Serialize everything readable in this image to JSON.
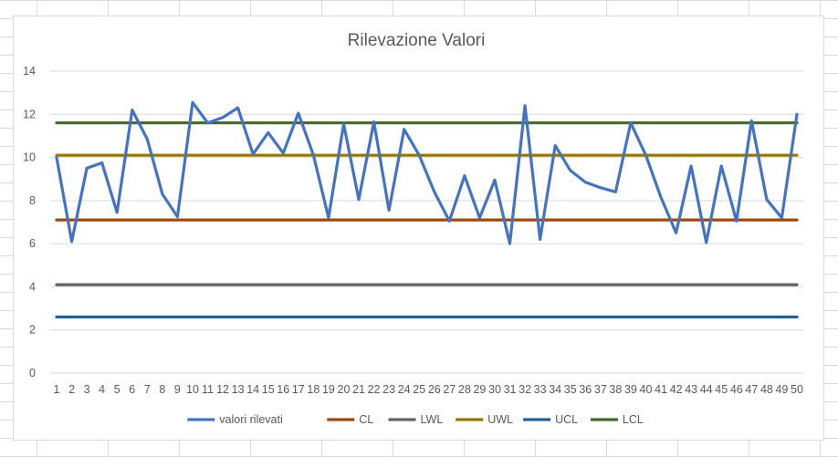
{
  "chart_data": {
    "type": "line",
    "title": "Rilevazione Valori",
    "xlabel": "",
    "ylabel": "",
    "categories": [
      "1",
      "2",
      "3",
      "4",
      "5",
      "6",
      "7",
      "8",
      "9",
      "10",
      "11",
      "12",
      "13",
      "14",
      "15",
      "16",
      "17",
      "18",
      "19",
      "20",
      "21",
      "22",
      "23",
      "24",
      "25",
      "26",
      "27",
      "28",
      "29",
      "30",
      "31",
      "32",
      "33",
      "34",
      "35",
      "36",
      "37",
      "38",
      "39",
      "40",
      "41",
      "42",
      "43",
      "44",
      "45",
      "46",
      "47",
      "48",
      "49",
      "50"
    ],
    "ylim": [
      0,
      14
    ],
    "yticks": [
      0,
      2,
      4,
      6,
      8,
      10,
      12,
      14
    ],
    "grid": true,
    "legend_position": "bottom",
    "series": [
      {
        "name": "valori rilevati",
        "color": "#4472c4",
        "values": [
          10.0,
          6.1,
          9.5,
          9.75,
          7.45,
          12.2,
          10.85,
          8.3,
          7.25,
          12.55,
          11.6,
          11.85,
          12.3,
          10.15,
          11.15,
          10.2,
          12.05,
          10.1,
          7.2,
          11.55,
          8.05,
          11.65,
          7.55,
          11.3,
          10.1,
          8.4,
          7.05,
          9.15,
          7.2,
          8.95,
          6.0,
          12.4,
          6.2,
          10.55,
          9.4,
          8.85,
          8.6,
          8.4,
          11.6,
          10.1,
          8.15,
          6.5,
          9.6,
          6.05,
          9.6,
          7.05,
          11.7,
          8.05,
          7.2,
          12.0
        ]
      },
      {
        "name": "CL",
        "color": "#9e480e",
        "values": [
          7.1,
          7.1,
          7.1,
          7.1,
          7.1,
          7.1,
          7.1,
          7.1,
          7.1,
          7.1,
          7.1,
          7.1,
          7.1,
          7.1,
          7.1,
          7.1,
          7.1,
          7.1,
          7.1,
          7.1,
          7.1,
          7.1,
          7.1,
          7.1,
          7.1,
          7.1,
          7.1,
          7.1,
          7.1,
          7.1,
          7.1,
          7.1,
          7.1,
          7.1,
          7.1,
          7.1,
          7.1,
          7.1,
          7.1,
          7.1,
          7.1,
          7.1,
          7.1,
          7.1,
          7.1,
          7.1,
          7.1,
          7.1,
          7.1,
          7.1
        ]
      },
      {
        "name": "LWL",
        "color": "#636363",
        "values": [
          4.1,
          4.1,
          4.1,
          4.1,
          4.1,
          4.1,
          4.1,
          4.1,
          4.1,
          4.1,
          4.1,
          4.1,
          4.1,
          4.1,
          4.1,
          4.1,
          4.1,
          4.1,
          4.1,
          4.1,
          4.1,
          4.1,
          4.1,
          4.1,
          4.1,
          4.1,
          4.1,
          4.1,
          4.1,
          4.1,
          4.1,
          4.1,
          4.1,
          4.1,
          4.1,
          4.1,
          4.1,
          4.1,
          4.1,
          4.1,
          4.1,
          4.1,
          4.1,
          4.1,
          4.1,
          4.1,
          4.1,
          4.1,
          4.1,
          4.1
        ]
      },
      {
        "name": "UWL",
        "color": "#997300",
        "values": [
          10.1,
          10.1,
          10.1,
          10.1,
          10.1,
          10.1,
          10.1,
          10.1,
          10.1,
          10.1,
          10.1,
          10.1,
          10.1,
          10.1,
          10.1,
          10.1,
          10.1,
          10.1,
          10.1,
          10.1,
          10.1,
          10.1,
          10.1,
          10.1,
          10.1,
          10.1,
          10.1,
          10.1,
          10.1,
          10.1,
          10.1,
          10.1,
          10.1,
          10.1,
          10.1,
          10.1,
          10.1,
          10.1,
          10.1,
          10.1,
          10.1,
          10.1,
          10.1,
          10.1,
          10.1,
          10.1,
          10.1,
          10.1,
          10.1,
          10.1
        ]
      },
      {
        "name": "UCL",
        "color": "#255e91",
        "values": [
          2.6,
          2.6,
          2.6,
          2.6,
          2.6,
          2.6,
          2.6,
          2.6,
          2.6,
          2.6,
          2.6,
          2.6,
          2.6,
          2.6,
          2.6,
          2.6,
          2.6,
          2.6,
          2.6,
          2.6,
          2.6,
          2.6,
          2.6,
          2.6,
          2.6,
          2.6,
          2.6,
          2.6,
          2.6,
          2.6,
          2.6,
          2.6,
          2.6,
          2.6,
          2.6,
          2.6,
          2.6,
          2.6,
          2.6,
          2.6,
          2.6,
          2.6,
          2.6,
          2.6,
          2.6,
          2.6,
          2.6,
          2.6,
          2.6,
          2.6
        ]
      },
      {
        "name": "LCL",
        "color": "#43682b",
        "values": [
          11.6,
          11.6,
          11.6,
          11.6,
          11.6,
          11.6,
          11.6,
          11.6,
          11.6,
          11.6,
          11.6,
          11.6,
          11.6,
          11.6,
          11.6,
          11.6,
          11.6,
          11.6,
          11.6,
          11.6,
          11.6,
          11.6,
          11.6,
          11.6,
          11.6,
          11.6,
          11.6,
          11.6,
          11.6,
          11.6,
          11.6,
          11.6,
          11.6,
          11.6,
          11.6,
          11.6,
          11.6,
          11.6,
          11.6,
          11.6,
          11.6,
          11.6,
          11.6,
          11.6,
          11.6,
          11.6,
          11.6,
          11.6,
          11.6,
          11.6
        ]
      }
    ]
  }
}
